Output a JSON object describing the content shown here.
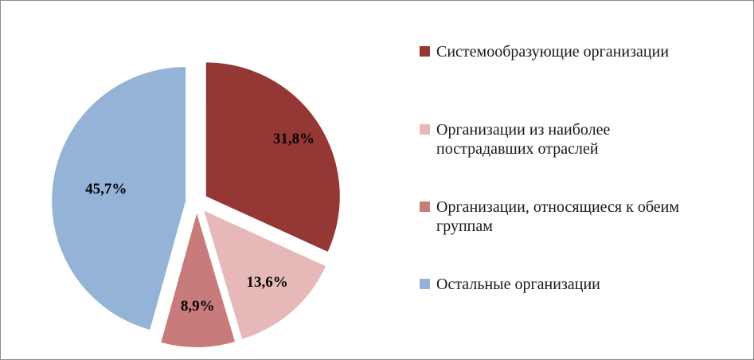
{
  "chart_data": {
    "type": "pie",
    "categories": [
      "Системообразующие организации",
      "Организации из наиболее пострадавших отраслей",
      "Организации, относящиеся к обеим группам",
      "Остальные организации"
    ],
    "values": [
      31.8,
      13.6,
      8.9,
      45.7
    ],
    "data_labels": [
      "31,8%",
      "13,6%",
      "8,9%",
      "45,7%"
    ],
    "colors": [
      "#953735",
      "#e6b9b8",
      "#c77b7a",
      "#95b3d7"
    ],
    "legend_placement": "right",
    "title": ""
  },
  "legend": {
    "items": [
      {
        "label_lines": [
          "Системообразующие организации"
        ],
        "color": "#953735"
      },
      {
        "label_lines": [
          "Организации из наиболее",
          "пострадавших отраслей"
        ],
        "color": "#e6b9b8"
      },
      {
        "label_lines": [
          "Организации, относящиеся к обеим",
          "группам"
        ],
        "color": "#c77b7a"
      },
      {
        "label_lines": [
          "Остальные организации"
        ],
        "color": "#95b3d7"
      }
    ]
  }
}
